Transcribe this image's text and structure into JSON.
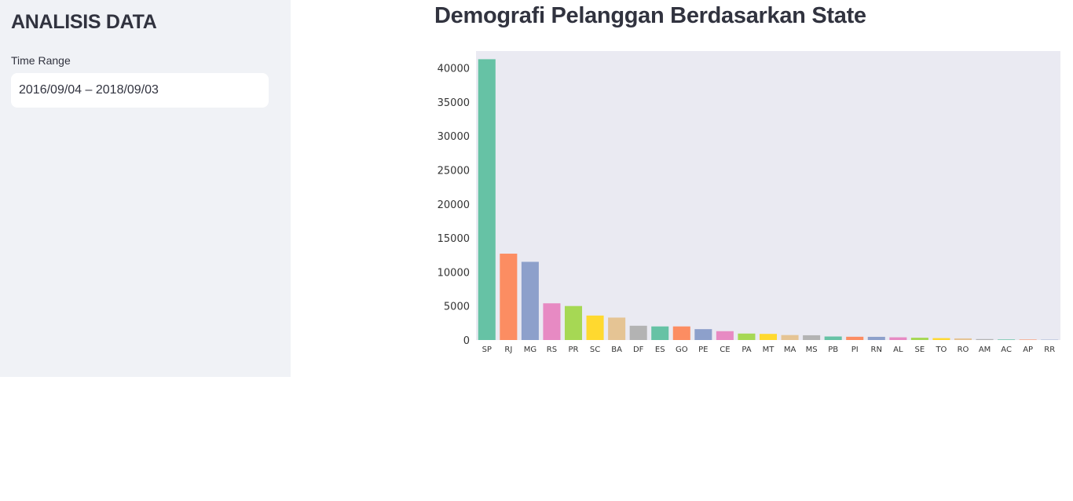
{
  "sidebar": {
    "title": "ANALISIS DATA",
    "time_range_label": "Time Range",
    "time_range_value": "2016/09/04 – 2018/09/03"
  },
  "main": {
    "title": "Demografi Pelanggan Berdasarkan State"
  },
  "chart_data": {
    "type": "bar",
    "title": "Demografi Pelanggan Berdasarkan State",
    "xlabel": "",
    "ylabel": "",
    "categories": [
      "SP",
      "RJ",
      "MG",
      "RS",
      "PR",
      "SC",
      "BA",
      "DF",
      "ES",
      "GO",
      "PE",
      "CE",
      "PA",
      "MT",
      "MA",
      "MS",
      "PB",
      "PI",
      "RN",
      "AL",
      "SE",
      "TO",
      "RO",
      "AM",
      "AC",
      "AP",
      "RR"
    ],
    "values": [
      41300,
      12700,
      11500,
      5400,
      5000,
      3600,
      3300,
      2100,
      2000,
      2000,
      1600,
      1300,
      950,
      900,
      730,
      700,
      520,
      480,
      470,
      400,
      340,
      280,
      240,
      140,
      80,
      65,
      45
    ],
    "ylim": [
      0,
      42500
    ],
    "yticks": [
      0,
      5000,
      10000,
      15000,
      20000,
      25000,
      30000,
      35000,
      40000
    ],
    "grid": false,
    "background": "#eaeaf2",
    "palette": [
      "#66c2a5",
      "#fc8d62",
      "#8da0cb",
      "#e78ac3",
      "#a6d854",
      "#ffd92f",
      "#e5c494",
      "#b3b3b3"
    ]
  }
}
